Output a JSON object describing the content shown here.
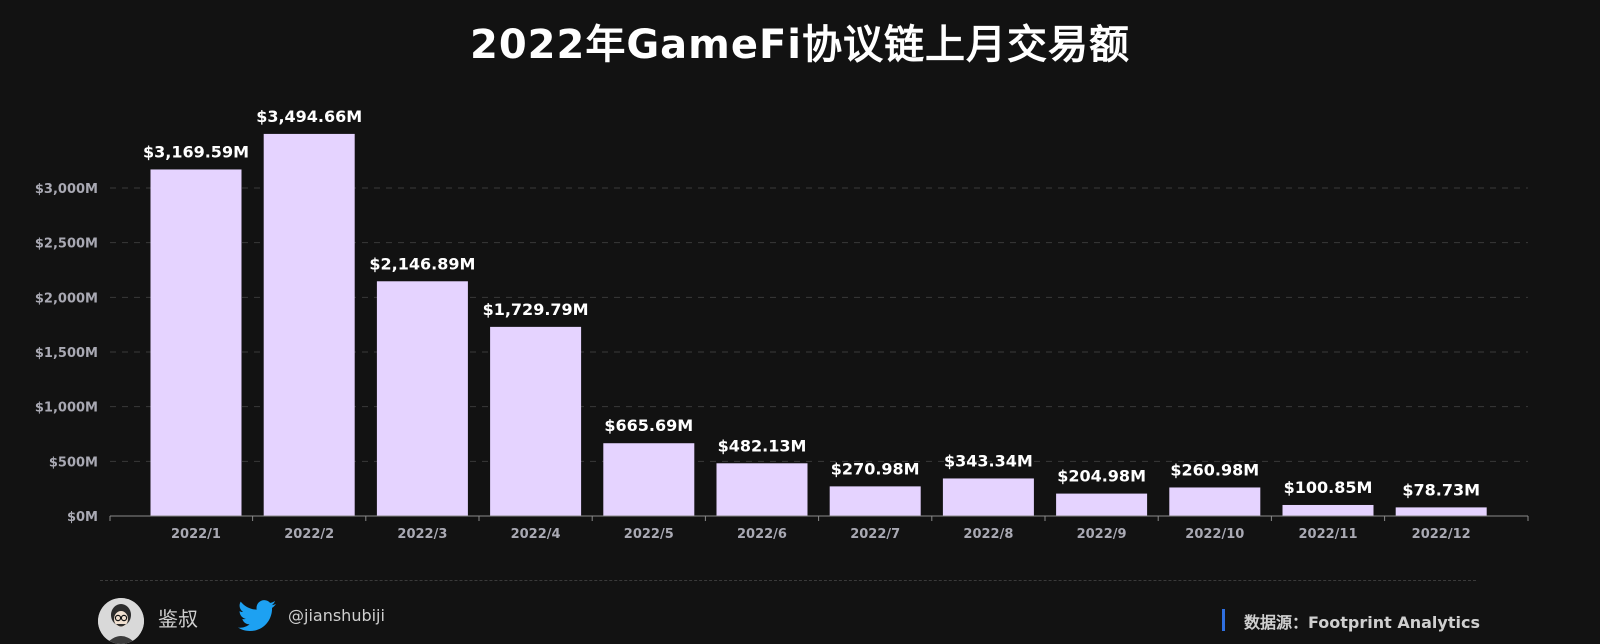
{
  "chart_data": {
    "type": "bar",
    "title": "2022年GameFi协议链上月交易额",
    "xlabel": "",
    "ylabel": "",
    "categories": [
      "2022/1",
      "2022/2",
      "2022/3",
      "2022/4",
      "2022/5",
      "2022/6",
      "2022/7",
      "2022/8",
      "2022/9",
      "2022/10",
      "2022/11",
      "2022/12"
    ],
    "values": [
      3169.59,
      3494.66,
      2146.89,
      1729.79,
      665.69,
      482.13,
      270.98,
      343.34,
      204.98,
      260.98,
      100.85,
      78.73
    ],
    "data_labels": [
      "$3,169.59M",
      "$3,494.66M",
      "$2,146.89M",
      "$1,729.79M",
      "$665.69M",
      "$482.13M",
      "$270.98M",
      "$343.34M",
      "$204.98M",
      "$260.98M",
      "$100.85M",
      "$78.73M"
    ],
    "yticks": [
      0,
      500,
      1000,
      1500,
      2000,
      2500,
      3000
    ],
    "ytick_labels": [
      "$0M",
      "$500M",
      "$1,000M",
      "$1,500M",
      "$2,000M",
      "$2,500M",
      "$3,000M"
    ],
    "ylim": [
      0,
      3500
    ],
    "grid": true,
    "legend": "none",
    "colors": {
      "bar": "#e5d3ff",
      "background": "#121212",
      "grid": "#3a3a3a",
      "tick_text": "#a9a9b3",
      "label_text": "#ffffff"
    }
  },
  "footer": {
    "author_name": "鉴叔",
    "twitter_handle": "@jianshubiji",
    "source": "数据源：Footprint  Analytics",
    "avatar_icon": "avatar-portrait-icon",
    "twitter_icon": "twitter-bird-icon",
    "twitter_color": "#1da1f2",
    "accent": "#2f6fe0"
  }
}
